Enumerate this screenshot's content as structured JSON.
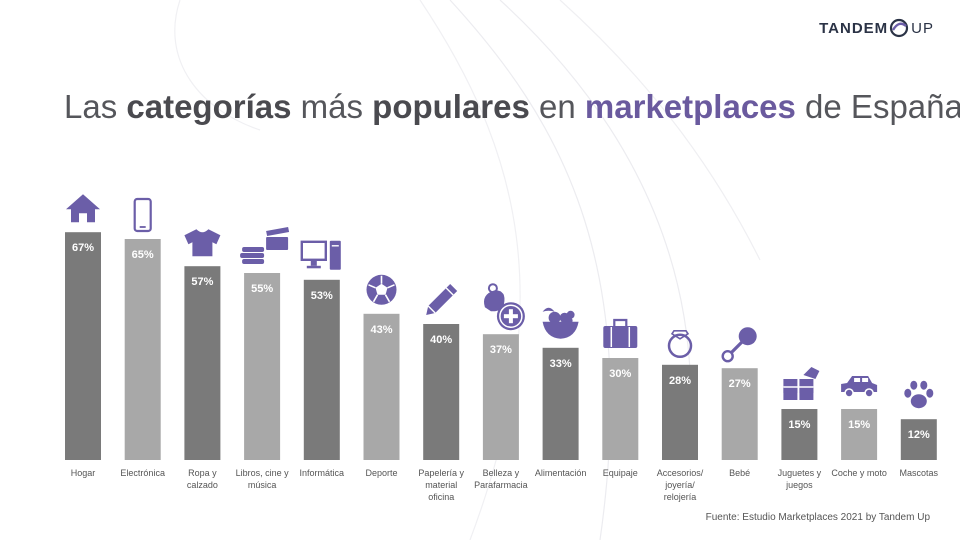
{
  "brand": {
    "part1": "TANDEM",
    "part2": "UP"
  },
  "title": {
    "t1": "Las ",
    "t2": "categorías",
    "t3": " más ",
    "t4": "populares",
    "t5": " en ",
    "t6": "marketplaces",
    "t7": " de España"
  },
  "source": "Fuente: Estudio Marketplaces 2021  by Tandem Up",
  "colors": {
    "dark_bar": "#7a7a7a",
    "light_bar": "#a8a8a8",
    "icon": "#6b5ea8",
    "label": "#555555"
  },
  "chart_data": {
    "type": "bar",
    "categories": [
      "Hogar",
      "Electrónica",
      "Ropa y calzado",
      "Libros, cine y música",
      "Informática",
      "Deporte",
      "Papelería y material oficina",
      "Belleza y Parafarmacia",
      "Alimentación",
      "Equipaje",
      "Accesorios/ joyería/ relojería",
      "Bebé",
      "Juguetes y juegos",
      "Coche y moto",
      "Mascotas"
    ],
    "category_lines": [
      [
        "Hogar"
      ],
      [
        "Electrónica"
      ],
      [
        "Ropa y",
        "calzado"
      ],
      [
        "Libros, cine y",
        "música"
      ],
      [
        "Informática"
      ],
      [
        "Deporte"
      ],
      [
        "Papelería y",
        "material",
        "oficina"
      ],
      [
        "Belleza y",
        "Parafarmacia"
      ],
      [
        "Alimentación"
      ],
      [
        "Equipaje"
      ],
      [
        "Accesorios/",
        "joyería/",
        "relojería"
      ],
      [
        "Bebé"
      ],
      [
        "Juguetes y",
        "juegos"
      ],
      [
        "Coche y moto"
      ],
      [
        "Mascotas"
      ]
    ],
    "values": [
      67,
      65,
      57,
      55,
      53,
      43,
      40,
      37,
      33,
      30,
      28,
      27,
      15,
      15,
      12
    ],
    "value_labels": [
      "67%",
      "65%",
      "57%",
      "55%",
      "53%",
      "43%",
      "40%",
      "37%",
      "33%",
      "30%",
      "28%",
      "27%",
      "15%",
      "15%",
      "12%"
    ],
    "icons": [
      "house-icon",
      "smartphone-icon",
      "tshirt-icon",
      "books-film-icon",
      "computer-icon",
      "soccer-ball-icon",
      "pencil-icon",
      "beauty-pharmacy-icon",
      "fruit-basket-icon",
      "suitcase-icon",
      "ring-icon",
      "rattle-icon",
      "puzzle-icon",
      "car-icon",
      "paw-icon"
    ],
    "ylim": [
      0,
      100
    ]
  }
}
